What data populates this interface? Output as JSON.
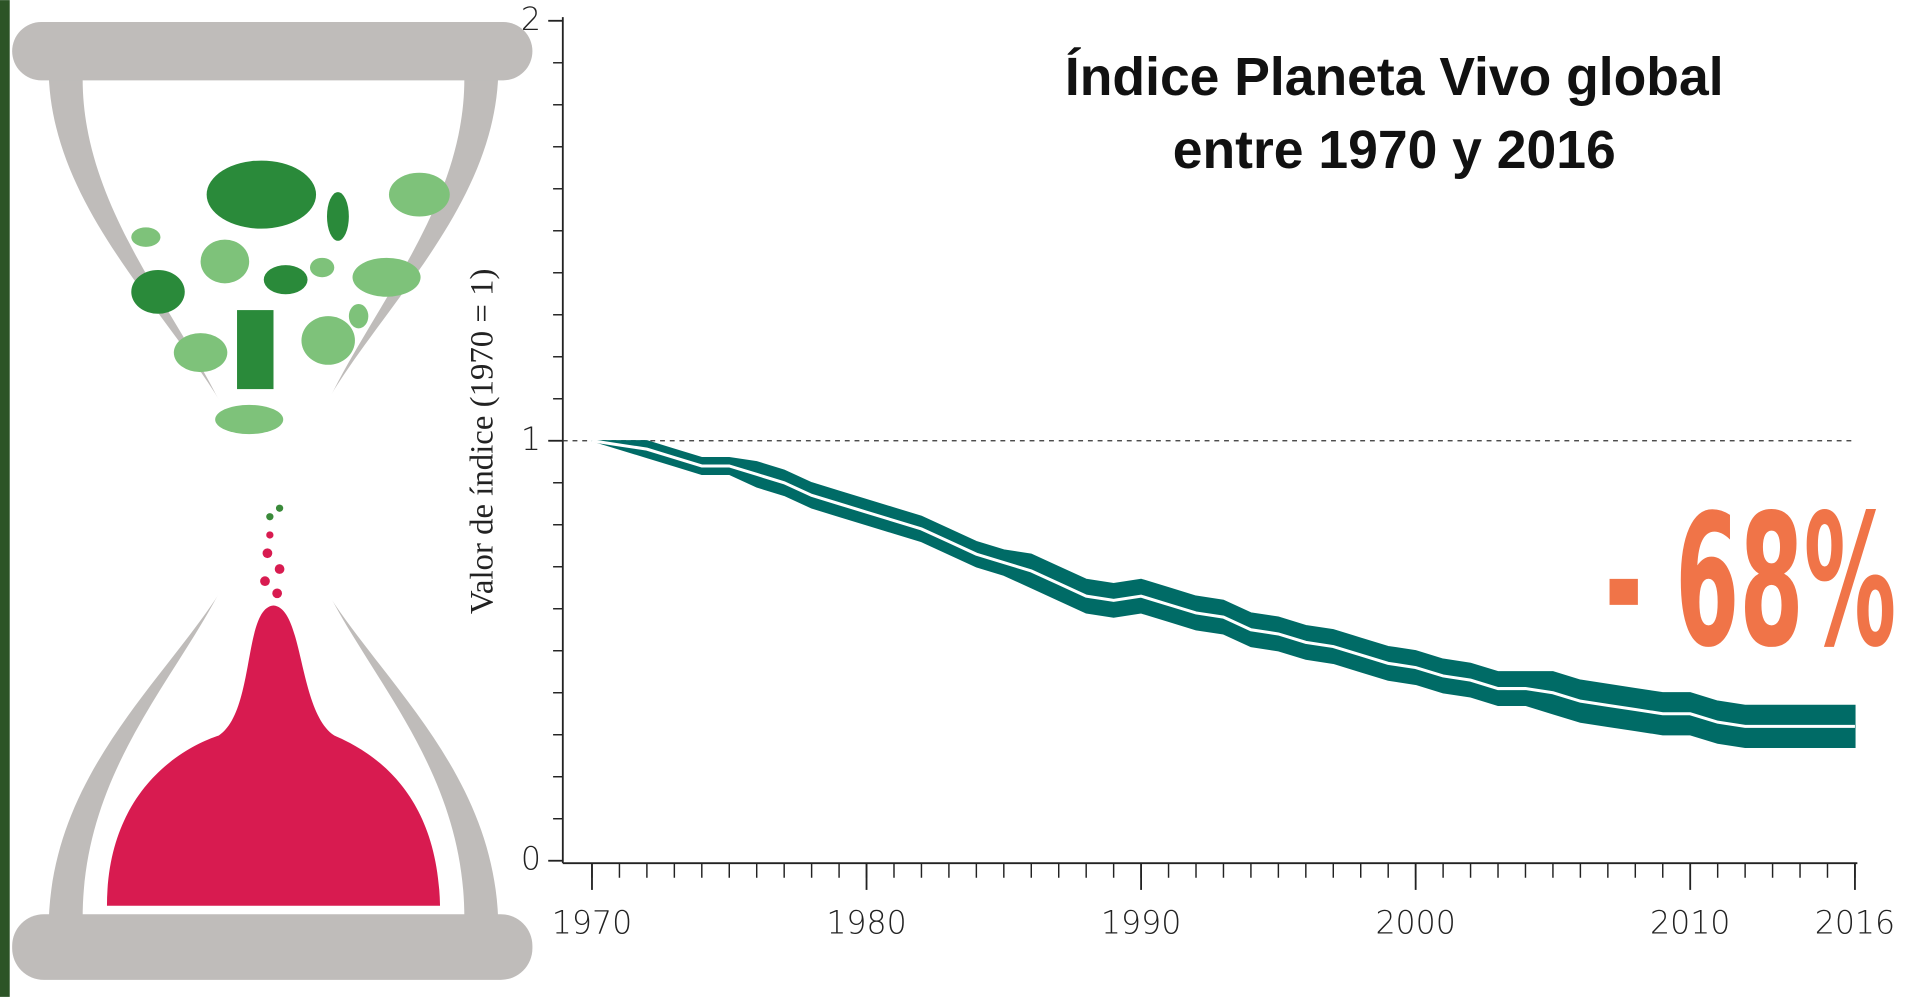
{
  "chart_data": {
    "type": "band-line",
    "title": [
      "Índice Planeta Vivo global",
      "entre 1970 y 2016"
    ],
    "y_label": "Valor de índice (1970 = 1)",
    "annotation": "- 68%",
    "x": [
      1970,
      1971,
      1972,
      1973,
      1974,
      1975,
      1976,
      1977,
      1978,
      1979,
      1980,
      1981,
      1982,
      1983,
      1984,
      1985,
      1986,
      1987,
      1988,
      1989,
      1990,
      1991,
      1992,
      1993,
      1994,
      1995,
      1996,
      1997,
      1998,
      1999,
      2000,
      2001,
      2002,
      2003,
      2004,
      2005,
      2006,
      2007,
      2008,
      2009,
      2010,
      2011,
      2012,
      2013,
      2014,
      2015,
      2016
    ],
    "values": [
      1.0,
      0.99,
      0.98,
      0.96,
      0.94,
      0.94,
      0.92,
      0.9,
      0.87,
      0.85,
      0.83,
      0.81,
      0.79,
      0.76,
      0.73,
      0.71,
      0.69,
      0.66,
      0.63,
      0.62,
      0.63,
      0.61,
      0.59,
      0.58,
      0.55,
      0.54,
      0.52,
      0.51,
      0.49,
      0.47,
      0.46,
      0.44,
      0.43,
      0.41,
      0.41,
      0.4,
      0.38,
      0.37,
      0.36,
      0.35,
      0.35,
      0.33,
      0.32,
      0.32,
      0.32,
      0.32,
      0.32
    ],
    "upper": [
      1.0,
      1.0,
      1.0,
      0.98,
      0.96,
      0.96,
      0.95,
      0.93,
      0.9,
      0.88,
      0.86,
      0.84,
      0.82,
      0.79,
      0.76,
      0.74,
      0.73,
      0.7,
      0.67,
      0.66,
      0.67,
      0.65,
      0.63,
      0.62,
      0.59,
      0.58,
      0.56,
      0.55,
      0.53,
      0.51,
      0.5,
      0.48,
      0.47,
      0.45,
      0.45,
      0.45,
      0.43,
      0.42,
      0.41,
      0.4,
      0.4,
      0.38,
      0.37,
      0.37,
      0.37,
      0.37,
      0.37
    ],
    "lower": [
      1.0,
      0.98,
      0.96,
      0.94,
      0.92,
      0.92,
      0.89,
      0.87,
      0.84,
      0.82,
      0.8,
      0.78,
      0.76,
      0.73,
      0.7,
      0.68,
      0.65,
      0.62,
      0.59,
      0.58,
      0.59,
      0.57,
      0.55,
      0.54,
      0.51,
      0.5,
      0.48,
      0.47,
      0.45,
      0.43,
      0.42,
      0.4,
      0.39,
      0.37,
      0.37,
      0.35,
      0.33,
      0.32,
      0.31,
      0.3,
      0.3,
      0.28,
      0.27,
      0.27,
      0.27,
      0.27,
      0.27
    ],
    "band_color": "#006b66",
    "line_color": "#ffffff",
    "xlim": [
      1970,
      2016
    ],
    "xticks": [
      1970,
      1980,
      1990,
      2000,
      2010,
      2016
    ],
    "ylim": [
      0,
      2
    ],
    "yticks": [
      0,
      1,
      2
    ],
    "yminorticks": [
      0.1,
      0.2,
      0.3,
      0.4,
      0.5,
      0.6,
      0.7,
      0.8,
      0.9,
      1.1,
      1.2,
      1.3,
      1.4,
      1.5,
      1.6,
      1.7,
      1.8,
      1.9
    ],
    "reference_line": 1
  }
}
